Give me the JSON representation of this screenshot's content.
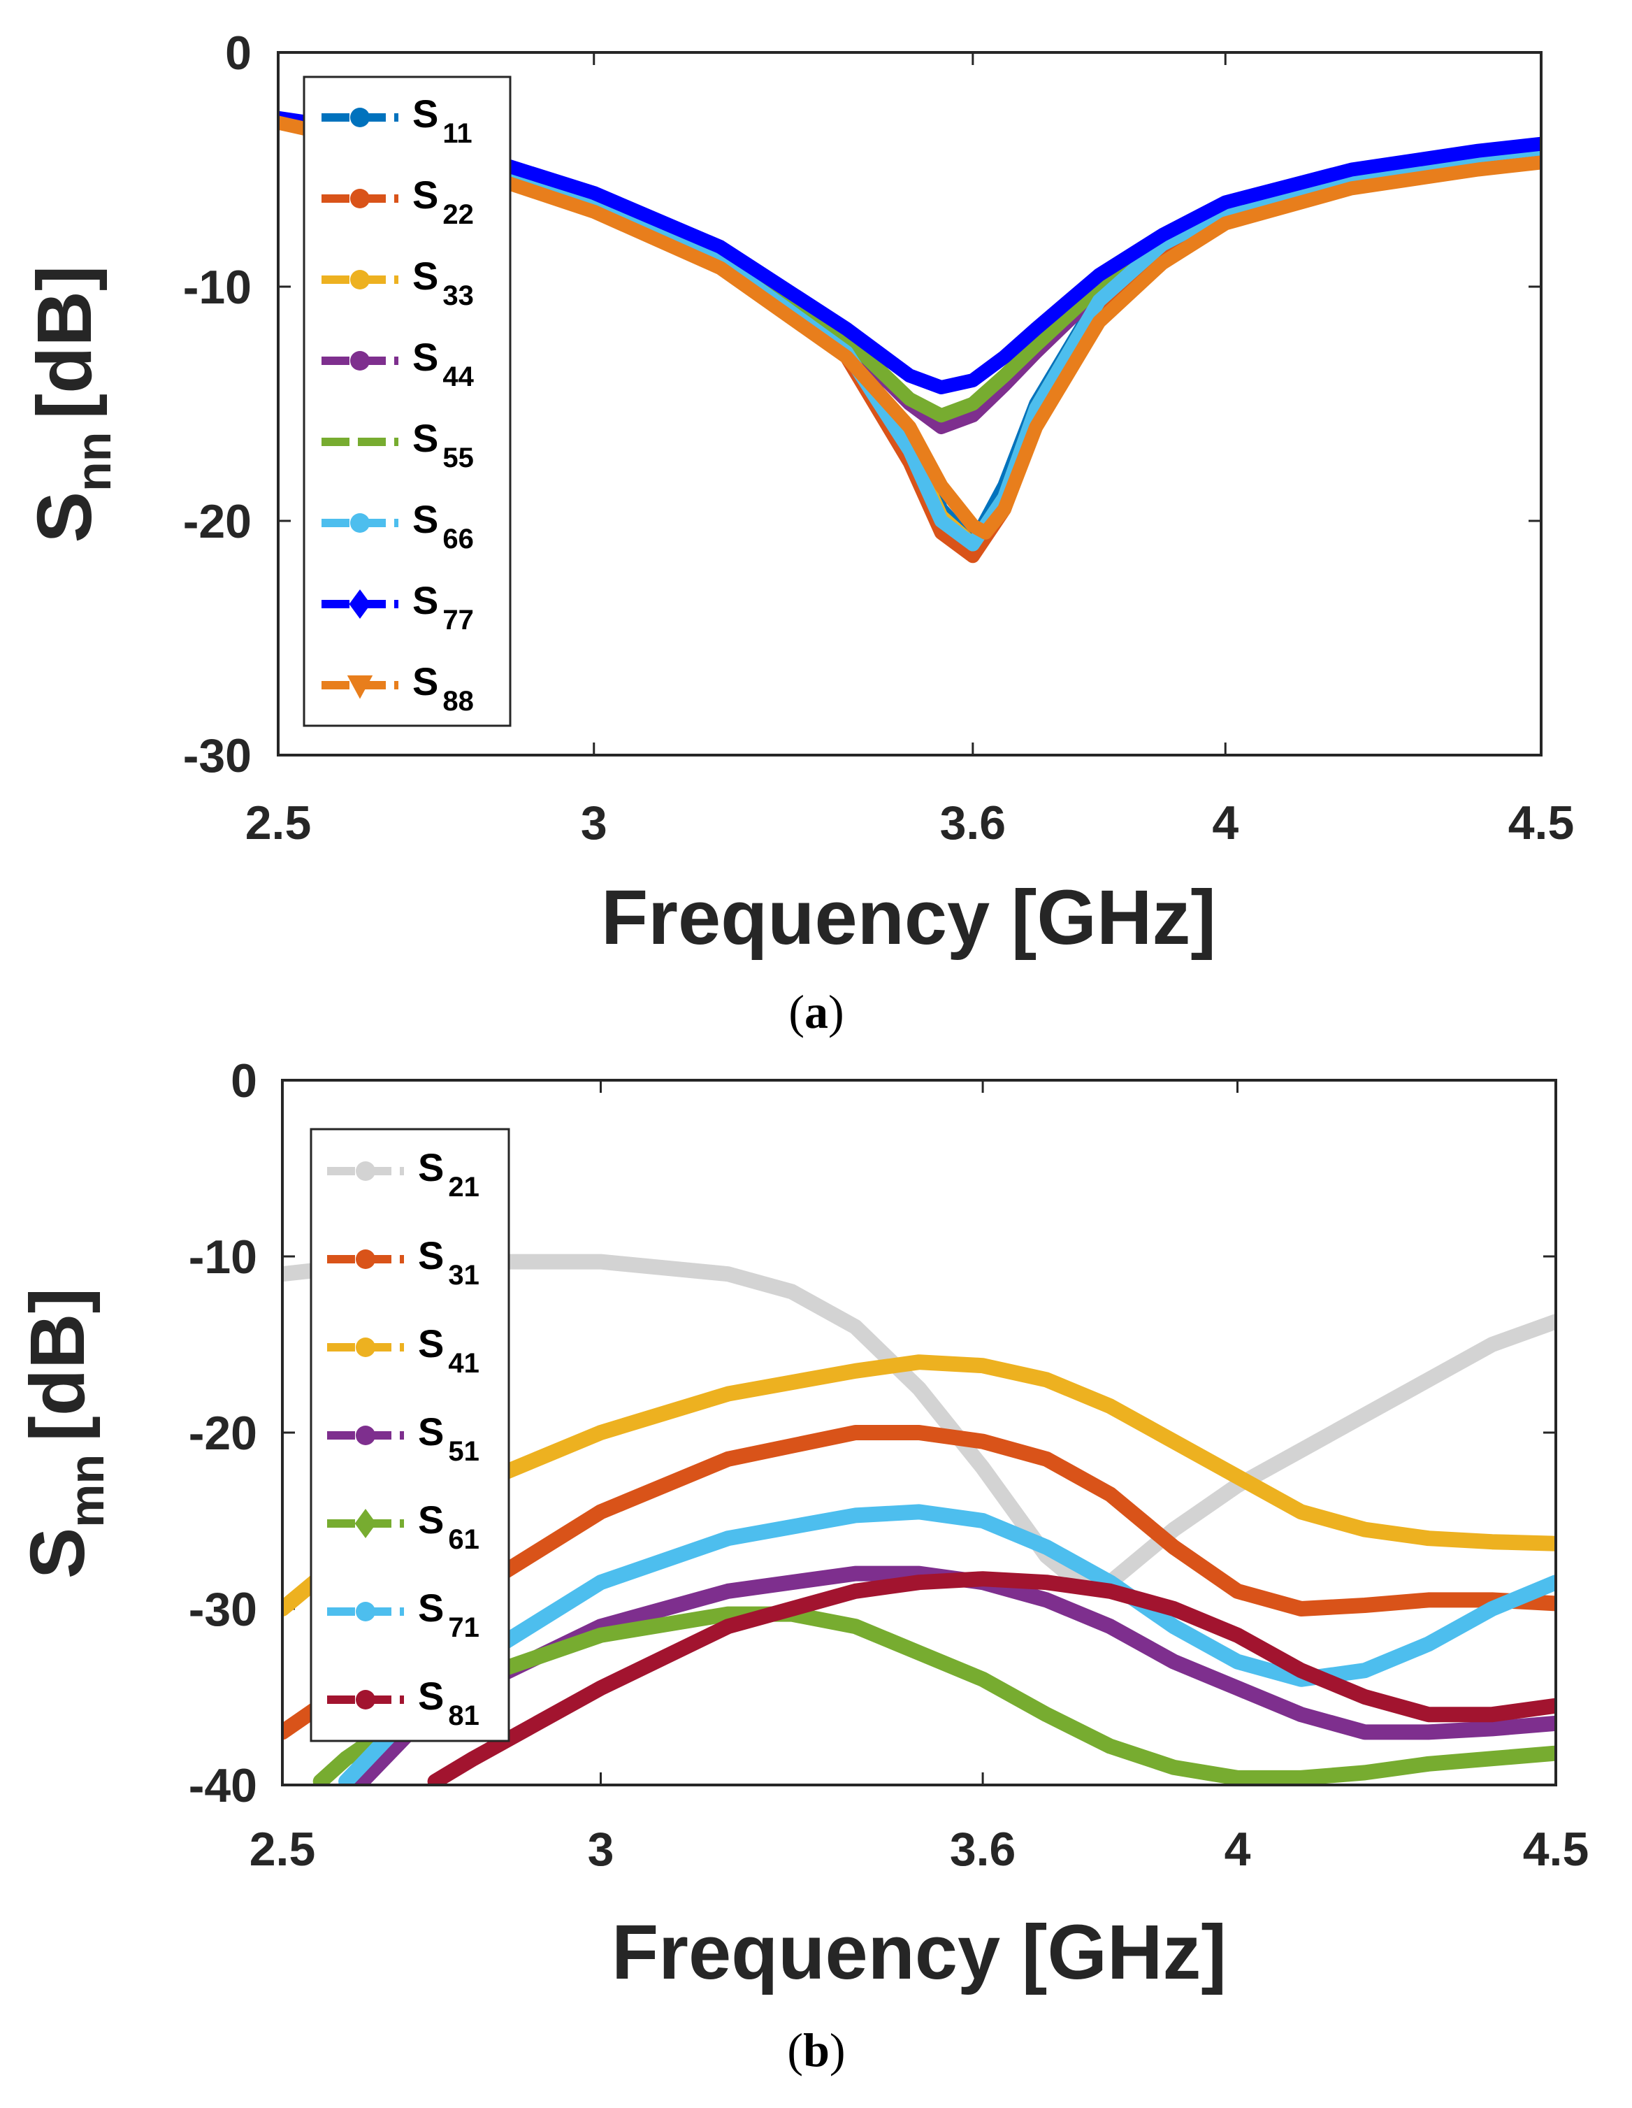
{
  "chart_data": [
    {
      "type": "line",
      "panel": "(a)",
      "caption_letter": "a",
      "xlabel": "Frequency [GHz]",
      "ylabel_main": "S",
      "ylabel_sub": "nn",
      "ylabel_unit": "[dB]",
      "xlim": [
        2.5,
        4.5
      ],
      "ylim": [
        -30,
        0
      ],
      "xticks": [
        2.5,
        3,
        3.6,
        4,
        4.5
      ],
      "xtick_labels": [
        "2.5",
        "3",
        "3.6",
        "4",
        "4.5"
      ],
      "yticks": [
        0,
        -10,
        -20,
        -30
      ],
      "ytick_labels": [
        "0",
        "-10",
        "-20",
        "-30"
      ],
      "legend_position": "top-left",
      "series": [
        {
          "name": "S",
          "sub": "11",
          "color": "#0072BD",
          "marker": "circle",
          "x": [
            2.5,
            2.6,
            2.8,
            3.0,
            3.2,
            3.4,
            3.5,
            3.55,
            3.6,
            3.65,
            3.7,
            3.8,
            3.9,
            4.0,
            4.2,
            4.4,
            4.5
          ],
          "y": [
            -3.0,
            -3.5,
            -4.8,
            -6.5,
            -8.8,
            -12.5,
            -16.5,
            -19.5,
            -21.0,
            -18.5,
            -15.0,
            -10.5,
            -8.2,
            -6.8,
            -5.3,
            -4.4,
            -4.1
          ]
        },
        {
          "name": "S",
          "sub": "22",
          "color": "#D95319",
          "marker": "circle",
          "x": [
            2.5,
            2.6,
            2.8,
            3.0,
            3.2,
            3.4,
            3.5,
            3.55,
            3.6,
            3.65,
            3.7,
            3.8,
            3.9,
            4.0,
            4.2,
            4.4,
            4.5
          ],
          "y": [
            -3.0,
            -3.5,
            -4.8,
            -6.6,
            -9.0,
            -13.0,
            -17.5,
            -20.5,
            -21.5,
            -19.5,
            -15.5,
            -10.8,
            -8.3,
            -6.8,
            -5.3,
            -4.4,
            -4.1
          ]
        },
        {
          "name": "S",
          "sub": "33",
          "color": "#EDB120",
          "marker": "circle",
          "x": [
            2.5,
            2.6,
            2.8,
            3.0,
            3.2,
            3.4,
            3.5,
            3.55,
            3.6,
            3.65,
            3.7,
            3.8,
            3.9,
            4.0,
            4.2,
            4.4,
            4.5
          ],
          "y": [
            -3.0,
            -3.5,
            -4.8,
            -6.5,
            -8.9,
            -12.6,
            -16.8,
            -19.8,
            -21.0,
            -19.0,
            -15.2,
            -10.6,
            -8.2,
            -6.8,
            -5.3,
            -4.4,
            -4.1
          ]
        },
        {
          "name": "S",
          "sub": "44",
          "color": "#7E2F8E",
          "marker": "circle",
          "x": [
            2.5,
            2.6,
            2.8,
            3.0,
            3.2,
            3.4,
            3.5,
            3.55,
            3.6,
            3.65,
            3.7,
            3.8,
            3.9,
            4.0,
            4.2,
            4.4,
            4.5
          ],
          "y": [
            -3.0,
            -3.5,
            -4.8,
            -6.5,
            -8.8,
            -12.3,
            -15.0,
            -16.0,
            -15.5,
            -14.2,
            -12.8,
            -10.2,
            -8.2,
            -6.8,
            -5.3,
            -4.4,
            -4.1
          ]
        },
        {
          "name": "S",
          "sub": "55",
          "color": "#77AC30",
          "marker": "none",
          "x": [
            2.5,
            2.6,
            2.8,
            3.0,
            3.2,
            3.4,
            3.5,
            3.55,
            3.6,
            3.65,
            3.7,
            3.8,
            3.9,
            4.0,
            4.2,
            4.4,
            4.5
          ],
          "y": [
            -3.0,
            -3.5,
            -4.8,
            -6.5,
            -8.8,
            -12.2,
            -14.8,
            -15.5,
            -15.0,
            -13.8,
            -12.5,
            -10.0,
            -8.1,
            -6.8,
            -5.3,
            -4.4,
            -4.1
          ]
        },
        {
          "name": "S",
          "sub": "66",
          "color": "#4DBEEE",
          "marker": "circle",
          "x": [
            2.5,
            2.6,
            2.8,
            3.0,
            3.2,
            3.4,
            3.5,
            3.55,
            3.6,
            3.65,
            3.7,
            3.8,
            3.9,
            4.0,
            4.2,
            4.4,
            4.5
          ],
          "y": [
            -3.0,
            -3.5,
            -4.8,
            -6.5,
            -8.9,
            -12.8,
            -17.0,
            -20.0,
            -21.0,
            -19.0,
            -15.2,
            -10.6,
            -8.2,
            -6.8,
            -5.3,
            -4.4,
            -4.1
          ]
        },
        {
          "name": "S",
          "sub": "77",
          "color": "#0000FF",
          "marker": "diamond",
          "x": [
            2.5,
            2.6,
            2.8,
            3.0,
            3.2,
            3.4,
            3.5,
            3.55,
            3.6,
            3.65,
            3.7,
            3.8,
            3.9,
            4.0,
            4.2,
            4.4,
            4.5
          ],
          "y": [
            -2.8,
            -3.2,
            -4.3,
            -6.0,
            -8.3,
            -11.8,
            -13.8,
            -14.3,
            -14.0,
            -13.0,
            -11.8,
            -9.5,
            -7.8,
            -6.4,
            -5.0,
            -4.2,
            -3.9
          ]
        },
        {
          "name": "S",
          "sub": "88",
          "color": "#E87E1C",
          "marker": "triangle-down",
          "x": [
            2.5,
            2.6,
            2.8,
            3.0,
            3.2,
            3.4,
            3.5,
            3.55,
            3.6,
            3.62,
            3.65,
            3.7,
            3.8,
            3.9,
            4.0,
            4.2,
            4.4,
            4.5
          ],
          "y": [
            -3.0,
            -3.6,
            -5.0,
            -6.8,
            -9.2,
            -13.0,
            -16.0,
            -18.5,
            -20.2,
            -20.5,
            -19.5,
            -16.0,
            -11.5,
            -9.0,
            -7.3,
            -5.8,
            -5.0,
            -4.7
          ]
        }
      ]
    },
    {
      "type": "line",
      "panel": "(b)",
      "caption_letter": "b",
      "xlabel": "Frequency [GHz]",
      "ylabel_main": "S",
      "ylabel_sub": "mn",
      "ylabel_unit": "[dB]",
      "xlim": [
        2.5,
        4.5
      ],
      "ylim": [
        -40,
        0
      ],
      "xticks": [
        2.5,
        3,
        3.6,
        4,
        4.5
      ],
      "xtick_labels": [
        "2.5",
        "3",
        "3.6",
        "4",
        "4.5"
      ],
      "yticks": [
        0,
        -10,
        -20,
        -30,
        -40
      ],
      "ytick_labels": [
        "0",
        "-10",
        "-20",
        "-30",
        "-40"
      ],
      "legend_position": "top-left",
      "series": [
        {
          "name": "S",
          "sub": "21",
          "color": "#D3D3D3",
          "marker": "circle",
          "x": [
            2.5,
            2.6,
            2.8,
            3.0,
            3.2,
            3.3,
            3.4,
            3.5,
            3.6,
            3.7,
            3.75,
            3.8,
            3.9,
            4.0,
            4.1,
            4.2,
            4.3,
            4.4,
            4.5
          ],
          "y": [
            -11.0,
            -10.6,
            -10.3,
            -10.3,
            -11.0,
            -12.0,
            -14.0,
            -17.5,
            -22.0,
            -27.0,
            -28.5,
            -28.5,
            -25.5,
            -23.0,
            -21.0,
            -19.0,
            -17.0,
            -15.0,
            -13.7
          ]
        },
        {
          "name": "S",
          "sub": "31",
          "color": "#D95319",
          "marker": "circle",
          "x": [
            2.5,
            2.6,
            2.8,
            3.0,
            3.2,
            3.4,
            3.5,
            3.6,
            3.7,
            3.8,
            3.9,
            4.0,
            4.1,
            4.2,
            4.3,
            4.4,
            4.5
          ],
          "y": [
            -37.0,
            -34.5,
            -29.0,
            -24.5,
            -21.5,
            -20.0,
            -20.0,
            -20.5,
            -21.5,
            -23.5,
            -26.5,
            -29.0,
            -30.0,
            -29.8,
            -29.5,
            -29.5,
            -29.7
          ]
        },
        {
          "name": "S",
          "sub": "41",
          "color": "#EDB120",
          "marker": "circle",
          "x": [
            2.5,
            2.6,
            2.8,
            3.0,
            3.2,
            3.4,
            3.5,
            3.6,
            3.7,
            3.8,
            3.9,
            4.0,
            4.1,
            4.2,
            4.3,
            4.4,
            4.5
          ],
          "y": [
            -30.0,
            -27.0,
            -23.0,
            -20.0,
            -17.8,
            -16.5,
            -16.0,
            -16.2,
            -17.0,
            -18.5,
            -20.5,
            -22.5,
            -24.5,
            -25.5,
            -26.0,
            -26.2,
            -26.3
          ]
        },
        {
          "name": "S",
          "sub": "51",
          "color": "#7E2F8E",
          "marker": "circle",
          "x": [
            2.62,
            2.7,
            2.8,
            3.0,
            3.2,
            3.4,
            3.5,
            3.6,
            3.7,
            3.8,
            3.9,
            4.0,
            4.1,
            4.2,
            4.3,
            4.4,
            4.5
          ],
          "y": [
            -40.0,
            -37.0,
            -34.5,
            -31.0,
            -29.0,
            -28.0,
            -28.0,
            -28.5,
            -29.5,
            -31.0,
            -33.0,
            -34.5,
            -36.0,
            -37.0,
            -37.0,
            -36.8,
            -36.5
          ]
        },
        {
          "name": "S",
          "sub": "61",
          "color": "#77AC30",
          "marker": "diamond",
          "x": [
            2.56,
            2.6,
            2.7,
            2.8,
            3.0,
            3.2,
            3.3,
            3.4,
            3.5,
            3.6,
            3.7,
            3.8,
            3.9,
            4.0,
            4.1,
            4.2,
            4.3,
            4.4,
            4.5
          ],
          "y": [
            -39.8,
            -38.5,
            -36.0,
            -34.0,
            -31.5,
            -30.3,
            -30.3,
            -31.0,
            -32.5,
            -34.0,
            -36.0,
            -37.8,
            -39.0,
            -39.6,
            -39.6,
            -39.3,
            -38.8,
            -38.5,
            -38.2
          ]
        },
        {
          "name": "S",
          "sub": "71",
          "color": "#4DBEEE",
          "marker": "circle",
          "x": [
            2.6,
            2.7,
            2.8,
            3.0,
            3.2,
            3.4,
            3.5,
            3.6,
            3.7,
            3.8,
            3.9,
            4.0,
            4.1,
            4.2,
            4.3,
            4.4,
            4.5
          ],
          "y": [
            -39.8,
            -36.0,
            -33.0,
            -28.5,
            -26.0,
            -24.7,
            -24.5,
            -25.0,
            -26.5,
            -28.5,
            -31.0,
            -33.0,
            -34.0,
            -33.5,
            -32.0,
            -30.0,
            -28.5
          ]
        },
        {
          "name": "S",
          "sub": "81",
          "color": "#A2142F",
          "marker": "circle",
          "x": [
            2.74,
            2.8,
            2.9,
            3.0,
            3.2,
            3.4,
            3.5,
            3.6,
            3.7,
            3.8,
            3.9,
            4.0,
            4.1,
            4.2,
            4.3,
            4.4,
            4.5
          ],
          "y": [
            -39.8,
            -38.5,
            -36.5,
            -34.5,
            -31.0,
            -29.0,
            -28.5,
            -28.3,
            -28.5,
            -29.0,
            -30.0,
            -31.5,
            -33.5,
            -35.0,
            -36.0,
            -36.0,
            -35.5
          ]
        }
      ]
    }
  ]
}
